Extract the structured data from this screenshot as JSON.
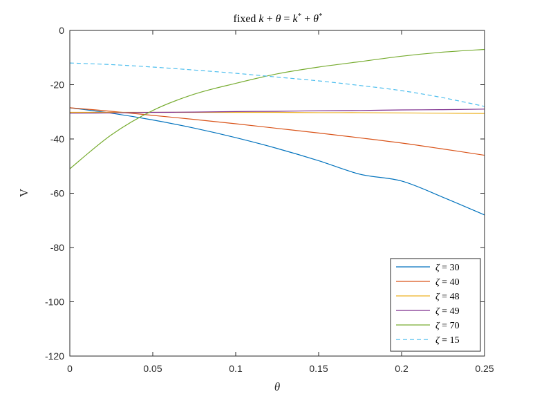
{
  "chart_data": {
    "type": "line",
    "title": "fixed k + θ = k* + θ*",
    "xlabel": "θ",
    "ylabel": "V",
    "xlim": [
      0,
      0.25
    ],
    "ylim": [
      -120,
      0
    ],
    "xticks": [
      0,
      0.05,
      0.1,
      0.15,
      0.2,
      0.25
    ],
    "xtick_labels": [
      "0",
      "0.05",
      "0.1",
      "0.15",
      "0.2",
      "0.25"
    ],
    "yticks": [
      0,
      -20,
      -40,
      -60,
      -80,
      -100,
      -120
    ],
    "ytick_labels": [
      "0",
      "-20",
      "-40",
      "-60",
      "-80",
      "-100",
      "-120"
    ],
    "grid": false,
    "legend_position": "bottom-right",
    "x": [
      0,
      0.025,
      0.05,
      0.075,
      0.1,
      0.125,
      0.15,
      0.175,
      0.2,
      0.225,
      0.25
    ],
    "series": [
      {
        "name": "ζ = 30",
        "color": "#0072BD",
        "dash": "solid",
        "values": [
          -28.5,
          -30.5,
          -33,
          -36,
          -39.5,
          -43.5,
          -48,
          -53,
          -55.5,
          -61.5,
          -68
        ]
      },
      {
        "name": "ζ = 40",
        "color": "#D95319",
        "dash": "solid",
        "values": [
          -28.5,
          -29.8,
          -31.3,
          -32.8,
          -34.4,
          -36.1,
          -37.8,
          -39.6,
          -41.5,
          -43.7,
          -46
        ]
      },
      {
        "name": "ζ = 48",
        "color": "#EDB120",
        "dash": "solid",
        "values": [
          -30.2,
          -30.2,
          -30.2,
          -30.2,
          -30.2,
          -30.2,
          -30.3,
          -30.3,
          -30.4,
          -30.5,
          -30.6
        ]
      },
      {
        "name": "ζ = 49",
        "color": "#7E2F8E",
        "dash": "solid",
        "values": [
          -30.5,
          -30.4,
          -30.2,
          -30.1,
          -29.9,
          -29.8,
          -29.6,
          -29.5,
          -29.3,
          -29.2,
          -29.0
        ]
      },
      {
        "name": "ζ = 70",
        "color": "#77AC30",
        "dash": "solid",
        "values": [
          -51,
          -38.5,
          -29.5,
          -23.5,
          -19.5,
          -16,
          -13.5,
          -11.5,
          -9.5,
          -8,
          -7
        ]
      },
      {
        "name": "ζ = 15",
        "color": "#4DBEEE",
        "dash": "dashed",
        "values": [
          -12,
          -12.6,
          -13.5,
          -14.6,
          -15.8,
          -17.2,
          -18.6,
          -20.3,
          -22.2,
          -24.8,
          -28
        ]
      }
    ]
  }
}
